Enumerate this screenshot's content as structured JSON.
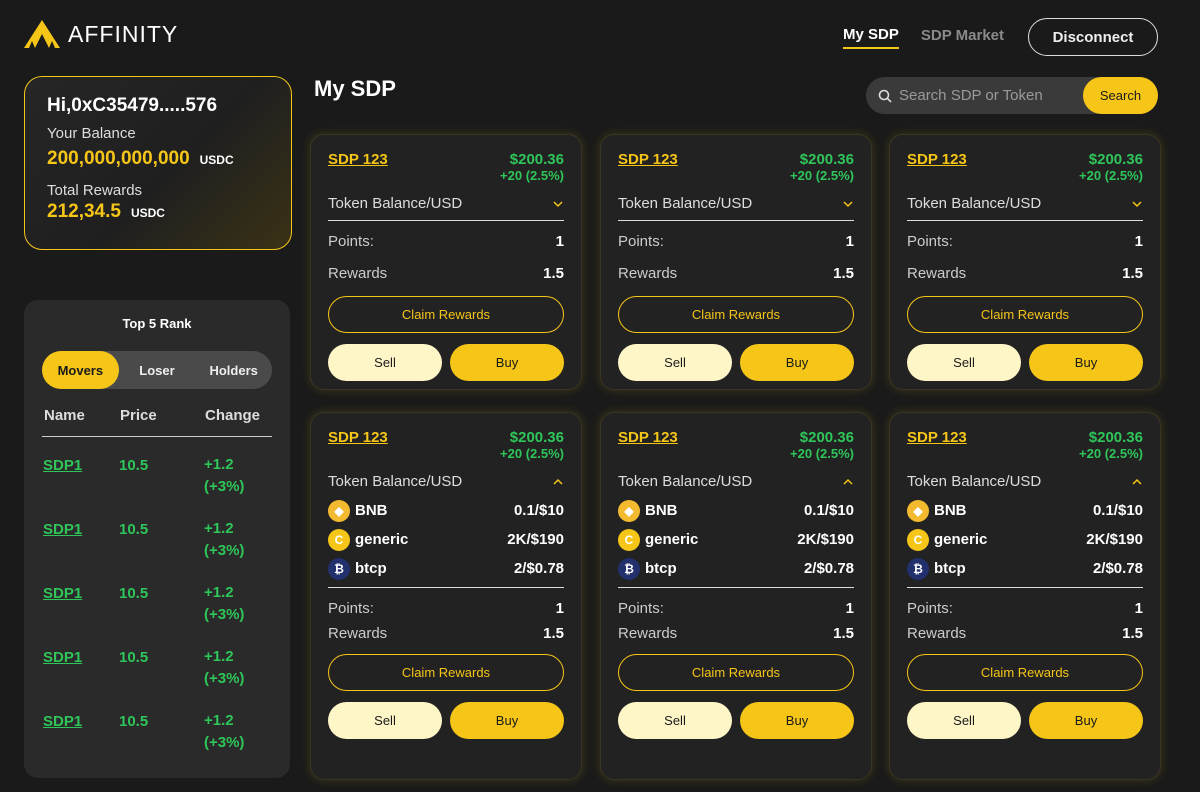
{
  "header": {
    "brand": "AFFINITY",
    "nav": [
      "My SDP",
      "SDP Market"
    ],
    "disconnect_label": "Disconnect",
    "accent": "#f5c518"
  },
  "account": {
    "greeting": "Hi,0xC35479.....576",
    "balance_label": "Your Balance",
    "balance_value": "200,000,000,000",
    "balance_unit": "USDC",
    "rewards_label": "Total Rewards",
    "rewards_value": "212,34.5",
    "rewards_unit": "USDC"
  },
  "rank": {
    "title": "Top 5 Rank",
    "tabs": [
      "Movers",
      "Loser",
      "Holders"
    ],
    "active_tab": "Movers",
    "columns": [
      "Name",
      "Price",
      "Change"
    ],
    "rows": [
      {
        "name": "SDP1",
        "price": "10.5",
        "change": "+1.2",
        "pct": "(+3%)"
      },
      {
        "name": "SDP1",
        "price": "10.5",
        "change": "+1.2",
        "pct": "(+3%)"
      },
      {
        "name": "SDP1",
        "price": "10.5",
        "change": "+1.2",
        "pct": "(+3%)"
      },
      {
        "name": "SDP1",
        "price": "10.5",
        "change": "+1.2",
        "pct": "(+3%)"
      },
      {
        "name": "SDP1",
        "price": "10.5",
        "change": "+1.2",
        "pct": "(+3%)"
      }
    ]
  },
  "main": {
    "title": "My SDP",
    "search_placeholder": "Search SDP or Token",
    "search_button": "Search"
  },
  "cards": [
    {
      "name": "SDP 123",
      "price": "$200.36",
      "change": "+20 (2.5%)",
      "dropdown": "Token Balance/USD",
      "expanded": false,
      "points_label": "Points:",
      "points": "1",
      "rewards_label": "Rewards",
      "rewards": "1.5",
      "claim": "Claim Rewards",
      "sell": "Sell",
      "buy": "Buy"
    },
    {
      "name": "SDP 123",
      "price": "$200.36",
      "change": "+20 (2.5%)",
      "dropdown": "Token Balance/USD",
      "expanded": false,
      "points_label": "Points:",
      "points": "1",
      "rewards_label": "Rewards",
      "rewards": "1.5",
      "claim": "Claim Rewards",
      "sell": "Sell",
      "buy": "Buy"
    },
    {
      "name": "SDP 123",
      "price": "$200.36",
      "change": "+20 (2.5%)",
      "dropdown": "Token Balance/USD",
      "expanded": false,
      "points_label": "Points:",
      "points": "1",
      "rewards_label": "Rewards",
      "rewards": "1.5",
      "claim": "Claim Rewards",
      "sell": "Sell",
      "buy": "Buy"
    },
    {
      "name": "SDP 123",
      "price": "$200.36",
      "change": "+20 (2.5%)",
      "dropdown": "Token Balance/USD",
      "expanded": true,
      "tokens": [
        {
          "symbol": "BNB",
          "value": "0.1/$10",
          "icon": "bnb-icon"
        },
        {
          "symbol": "generic",
          "value": "2K/$190",
          "icon": "generic-coin-icon"
        },
        {
          "symbol": "btcp",
          "value": "2/$0.78",
          "icon": "btcp-icon"
        }
      ],
      "points_label": "Points:",
      "points": "1",
      "rewards_label": "Rewards",
      "rewards": "1.5",
      "claim": "Claim Rewards",
      "sell": "Sell",
      "buy": "Buy"
    },
    {
      "name": "SDP 123",
      "price": "$200.36",
      "change": "+20 (2.5%)",
      "dropdown": "Token Balance/USD",
      "expanded": true,
      "tokens": [
        {
          "symbol": "BNB",
          "value": "0.1/$10",
          "icon": "bnb-icon"
        },
        {
          "symbol": "generic",
          "value": "2K/$190",
          "icon": "generic-coin-icon"
        },
        {
          "symbol": "btcp",
          "value": "2/$0.78",
          "icon": "btcp-icon"
        }
      ],
      "points_label": "Points:",
      "points": "1",
      "rewards_label": "Rewards",
      "rewards": "1.5",
      "claim": "Claim Rewards",
      "sell": "Sell",
      "buy": "Buy"
    },
    {
      "name": "SDP 123",
      "price": "$200.36",
      "change": "+20 (2.5%)",
      "dropdown": "Token Balance/USD",
      "expanded": true,
      "tokens": [
        {
          "symbol": "BNB",
          "value": "0.1/$10",
          "icon": "bnb-icon"
        },
        {
          "symbol": "generic",
          "value": "2K/$190",
          "icon": "generic-coin-icon"
        },
        {
          "symbol": "btcp",
          "value": "2/$0.78",
          "icon": "btcp-icon"
        }
      ],
      "points_label": "Points:",
      "points": "1",
      "rewards_label": "Rewards",
      "rewards": "1.5",
      "claim": "Claim Rewards",
      "sell": "Sell",
      "buy": "Buy"
    }
  ]
}
